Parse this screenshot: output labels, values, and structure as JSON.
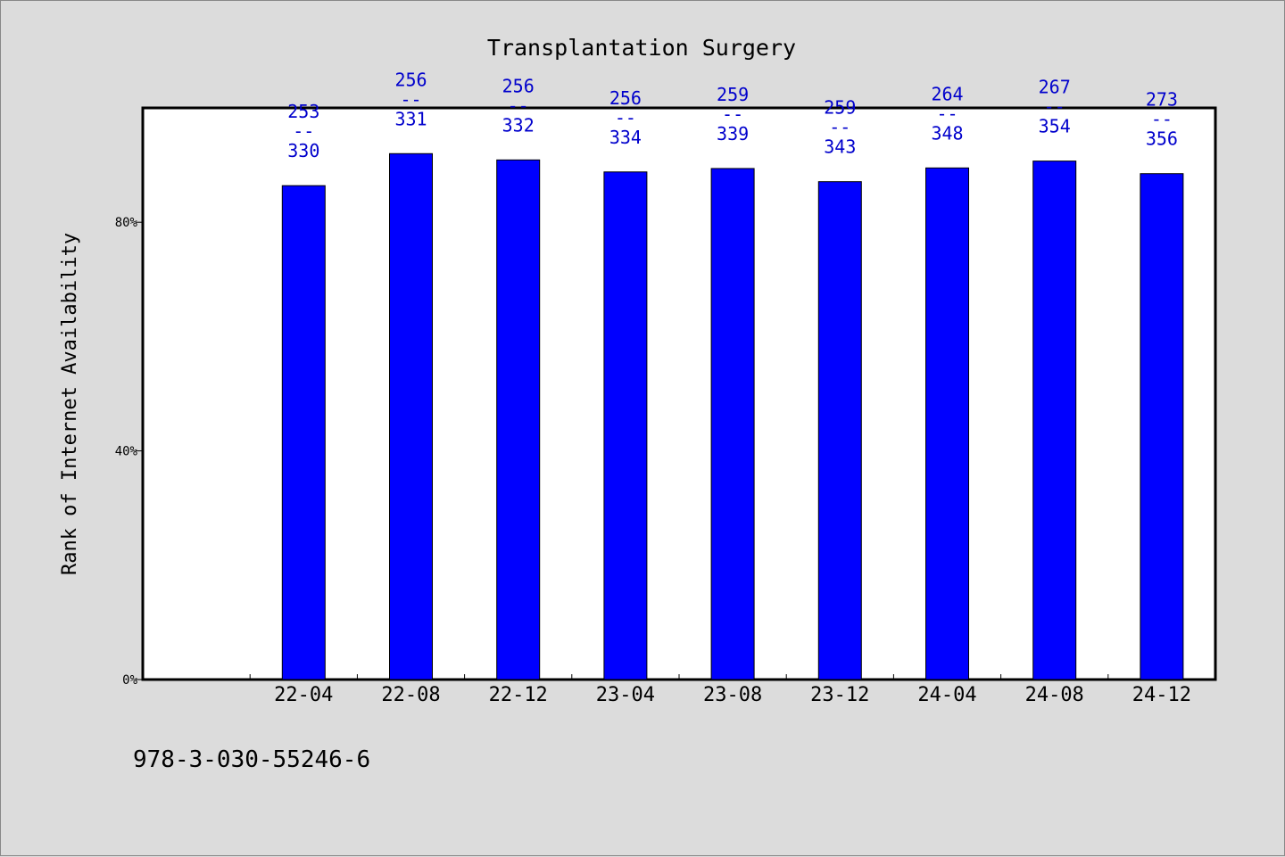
{
  "chart_data": {
    "type": "bar",
    "title": "Transplantation Surgery",
    "xlabel": "",
    "ylabel": "Rank of Internet Availability",
    "categories": [
      "22-04",
      "22-08",
      "22-12",
      "23-04",
      "23-08",
      "23-12",
      "24-04",
      "24-08",
      "24-12"
    ],
    "values": [
      86.4,
      92.0,
      90.9,
      88.8,
      89.4,
      87.1,
      89.5,
      90.7,
      88.5
    ],
    "bar_labels": [
      {
        "top": "253",
        "sep": "--",
        "bottom": "330"
      },
      {
        "top": "256",
        "sep": "--",
        "bottom": "331"
      },
      {
        "top": "256",
        "sep": "--",
        "bottom": "332"
      },
      {
        "top": "256",
        "sep": "--",
        "bottom": "334"
      },
      {
        "top": "259",
        "sep": "--",
        "bottom": "339"
      },
      {
        "top": "259",
        "sep": "--",
        "bottom": "343"
      },
      {
        "top": "264",
        "sep": "--",
        "bottom": "348"
      },
      {
        "top": "267",
        "sep": "--",
        "bottom": "354"
      },
      {
        "top": "273",
        "sep": "--",
        "bottom": "356"
      }
    ],
    "yticks": [
      0,
      40,
      80
    ],
    "ytick_labels": [
      "0%",
      "40%",
      "80%"
    ],
    "ylim": [
      0,
      100
    ],
    "grid": false,
    "legend": "none",
    "colors": {
      "bar": "#0000ff",
      "bar_label": "#0000cc",
      "plot_bg": "#ffffff",
      "page_bg": "#dcdcdc"
    }
  },
  "footer": {
    "isbn": "978-3-030-55246-6"
  }
}
